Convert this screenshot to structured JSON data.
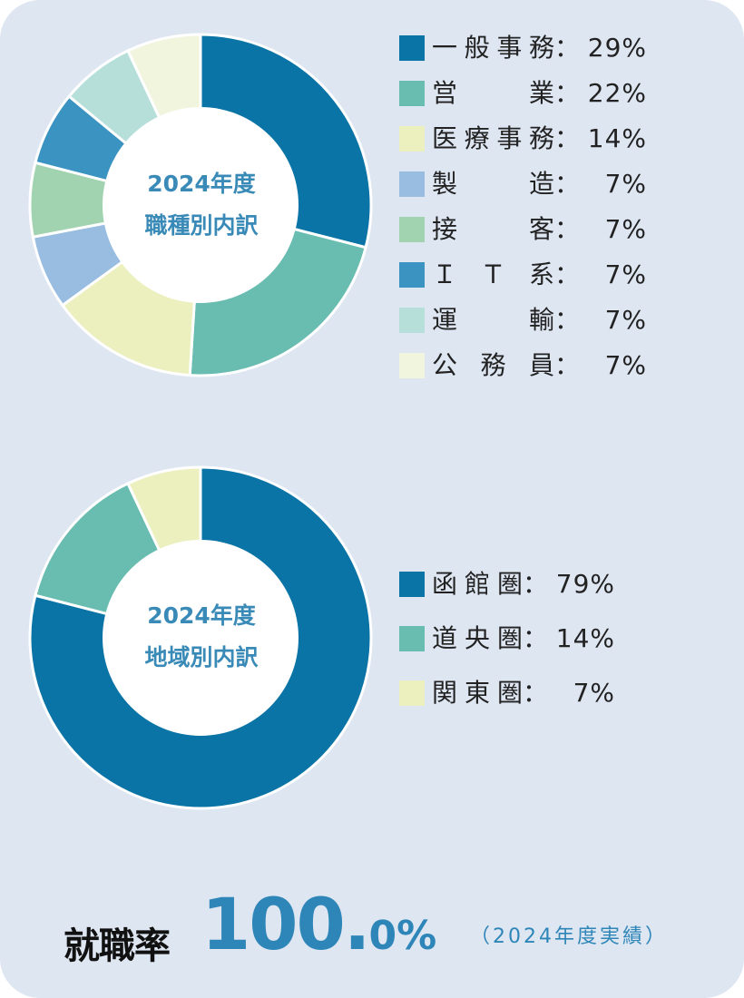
{
  "chart_data": [
    {
      "type": "pie",
      "title": "2024年度",
      "subtitle": "職種別内訳",
      "categories": [
        "一般事務",
        "営　業",
        "医療事務",
        "製　造",
        "接　客",
        "ＩＴ系",
        "運　輸",
        "公務員"
      ],
      "values": [
        29,
        22,
        14,
        7,
        7,
        7,
        7,
        7
      ],
      "labels": [
        "29%",
        "22%",
        "14%",
        "7%",
        "7%",
        "7%",
        "7%",
        "7%"
      ],
      "colors": [
        "#0a74a6",
        "#68bcb0",
        "#ecefbe",
        "#98bde0",
        "#a2d3b1",
        "#3b93c1",
        "#b6dfda",
        "#f2f5de"
      ],
      "legend": "right"
    },
    {
      "type": "pie",
      "title": "2024年度",
      "subtitle": "地域別内訳",
      "categories": [
        "函館圏",
        "道央圏",
        "関東圏"
      ],
      "values": [
        79,
        14,
        7
      ],
      "labels": [
        "79%",
        "14%",
        "7%"
      ],
      "colors": [
        "#0a74a6",
        "#68bcb0",
        "#ecefbe"
      ],
      "legend": "right"
    }
  ],
  "footer": {
    "label": "就職率",
    "rate_main": "100.",
    "rate_small": "0%",
    "note": "（2024年度実績）"
  }
}
